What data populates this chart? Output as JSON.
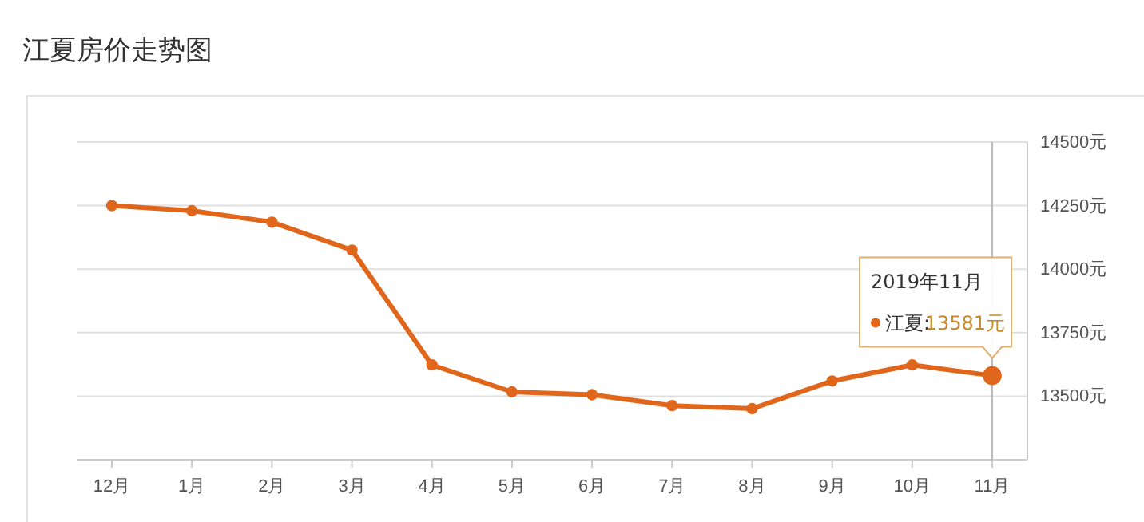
{
  "chart_data": {
    "type": "line",
    "title": "江夏房价走势图",
    "categories": [
      "12月",
      "1月",
      "2月",
      "3月",
      "4月",
      "5月",
      "6月",
      "7月",
      "8月",
      "9月",
      "10月",
      "11月"
    ],
    "series": [
      {
        "name": "江夏:",
        "color": "#e0661c",
        "values": [
          14250,
          14230,
          14185,
          14075,
          13623,
          13517,
          13506,
          13463,
          13451,
          13560,
          13623,
          13581
        ],
        "value_labels": [
          null,
          null,
          null,
          null,
          null,
          null,
          null,
          null,
          null,
          null,
          null,
          "13581元"
        ]
      }
    ],
    "ylim": [
      13250,
      14500
    ],
    "yticks": [
      {
        "value": 13500,
        "label": "13500元"
      },
      {
        "value": 13750,
        "label": "13750元"
      },
      {
        "value": 14000,
        "label": "14000元"
      },
      {
        "value": 14250,
        "label": "14250元"
      },
      {
        "value": 14500,
        "label": "14500元"
      }
    ],
    "ref_lines": [
      {
        "axis": "x",
        "value": "11月",
        "color": "#bbbbbb"
      }
    ],
    "annotations": [
      "2019年11月"
    ],
    "grid": "y",
    "marker": "circle",
    "line_style": "solid"
  }
}
